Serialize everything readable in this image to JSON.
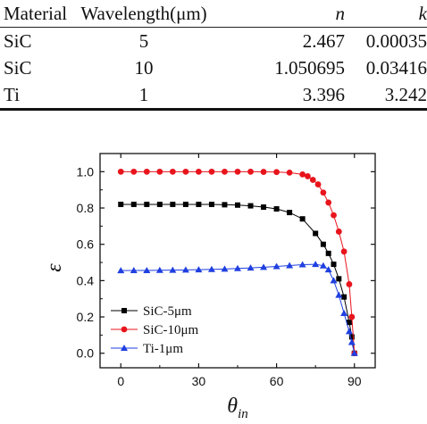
{
  "table": {
    "headers": [
      "Material",
      "Wavelength(μm)",
      "n",
      "k"
    ],
    "rows": [
      [
        "SiC",
        "5",
        "2.467",
        "0.00035"
      ],
      [
        "SiC",
        "10",
        "1.050695",
        "0.03416"
      ],
      [
        "Ti",
        "1",
        "3.396",
        "3.242"
      ]
    ]
  },
  "chart_data": {
    "type": "line",
    "title": "",
    "xlabel": "θin",
    "ylabel": "ε",
    "xlim": [
      -8,
      98
    ],
    "ylim": [
      -0.08,
      1.1
    ],
    "xticks": [
      "0",
      "30",
      "60",
      "90"
    ],
    "yticks": [
      "0.0",
      "0.2",
      "0.4",
      "0.6",
      "0.8",
      "1.0"
    ],
    "grid": false,
    "legend": "bottom-left",
    "series": [
      {
        "name": "SiC-5μm",
        "color": "#000000",
        "marker": "square",
        "x": [
          0,
          5,
          10,
          15,
          20,
          25,
          30,
          35,
          40,
          45,
          50,
          55,
          60,
          65,
          70,
          75,
          78,
          80,
          82,
          84,
          86,
          88,
          89,
          90
        ],
        "y": [
          0.82,
          0.82,
          0.82,
          0.82,
          0.82,
          0.82,
          0.82,
          0.82,
          0.818,
          0.816,
          0.812,
          0.805,
          0.795,
          0.775,
          0.74,
          0.66,
          0.6,
          0.55,
          0.49,
          0.41,
          0.31,
          0.17,
          0.09,
          0.0
        ]
      },
      {
        "name": "SiC-10μm",
        "color": "#e8141c",
        "marker": "circle",
        "x": [
          0,
          5,
          10,
          15,
          20,
          25,
          30,
          35,
          40,
          45,
          50,
          55,
          60,
          65,
          70,
          72,
          74,
          76,
          78,
          80,
          82,
          84,
          86,
          88,
          89,
          90
        ],
        "y": [
          1.0,
          1.0,
          1.0,
          1.0,
          1.0,
          1.0,
          1.0,
          1.0,
          1.0,
          1.0,
          1.0,
          0.999,
          0.998,
          0.995,
          0.985,
          0.975,
          0.955,
          0.93,
          0.885,
          0.83,
          0.76,
          0.67,
          0.56,
          0.38,
          0.2,
          0.0
        ]
      },
      {
        "name": "Ti-1μm",
        "color": "#1f3fe0",
        "marker": "triangle",
        "x": [
          0,
          5,
          10,
          15,
          20,
          25,
          30,
          35,
          40,
          45,
          50,
          55,
          60,
          65,
          70,
          75,
          78,
          80,
          82,
          84,
          86,
          88,
          89,
          90
        ],
        "y": [
          0.455,
          0.456,
          0.456,
          0.457,
          0.458,
          0.459,
          0.46,
          0.462,
          0.464,
          0.467,
          0.47,
          0.474,
          0.478,
          0.483,
          0.488,
          0.49,
          0.482,
          0.46,
          0.4,
          0.32,
          0.22,
          0.12,
          0.06,
          0.0
        ]
      }
    ]
  }
}
